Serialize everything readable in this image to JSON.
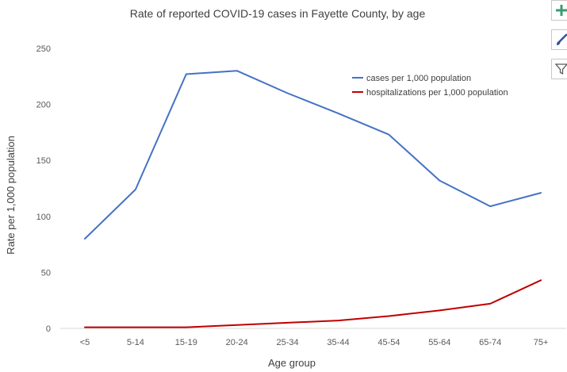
{
  "chart_data": {
    "type": "line",
    "title": "Rate of reported COVID-19 cases in Fayette County, by age",
    "xlabel": "Age group",
    "ylabel": "Rate per 1,000 population",
    "categories": [
      "<5",
      "5-14",
      "15-19",
      "20-24",
      "25-34",
      "35-44",
      "45-54",
      "55-64",
      "65-74",
      "75+"
    ],
    "ylim": [
      0,
      250
    ],
    "yticks": [
      0,
      50,
      100,
      150,
      200,
      250
    ],
    "grid": false,
    "legend_position": "top-right",
    "series": [
      {
        "name": "cases per 1,000 population",
        "color": "#4472c4",
        "values": [
          80,
          124,
          227,
          230,
          210,
          192,
          173,
          132,
          109,
          121
        ]
      },
      {
        "name": "hospitalizations per 1,000 population",
        "color": "#c00000",
        "values": [
          1,
          1,
          1,
          3,
          5,
          7,
          11,
          16,
          22,
          43
        ]
      }
    ]
  },
  "side_buttons": {
    "add_icon": "plus-icon",
    "style_icon": "brush-icon",
    "filter_icon": "filter-icon"
  }
}
